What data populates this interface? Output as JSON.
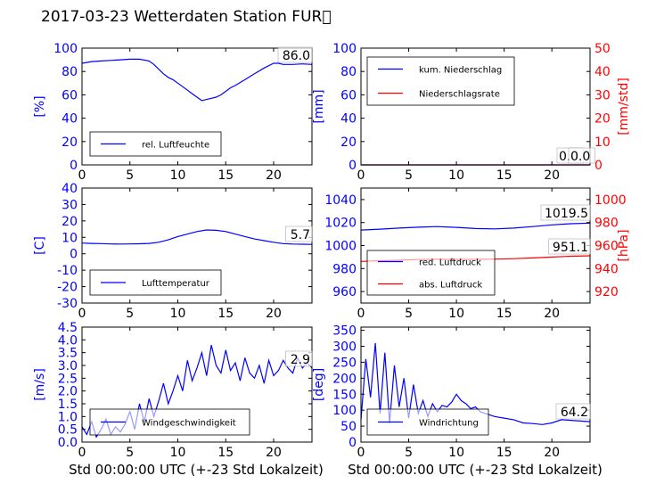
{
  "title": "2017-03-23 Wetterdaten Station FUR\u0000",
  "x_axis_label": "Std 00:00:00 UTC (+-23 Std Lokalzeit)",
  "colors": {
    "left_axis": "#0000ff",
    "right_axis": "#ff0000",
    "series_blue": "#0000ff",
    "series_red": "#ff0000"
  },
  "chart_data": [
    {
      "id": "humidity",
      "type": "line",
      "ylabel_left": "[%]",
      "ylim_left": [
        0,
        100
      ],
      "yticks_left": [
        0,
        20,
        40,
        60,
        80,
        100
      ],
      "xlim": [
        0,
        24
      ],
      "xticks": [
        0,
        5,
        10,
        15,
        20
      ],
      "legend": [
        "rel. Luftfeuchte"
      ],
      "legend_position": "lower-left",
      "annotations": [
        "86.0"
      ],
      "series": [
        {
          "name": "rel. Luftfeuchte",
          "axis": "left",
          "color": "#0000ff",
          "x": [
            0,
            1,
            2,
            3,
            4,
            5,
            6,
            7,
            7.5,
            8,
            8.5,
            9,
            9.5,
            10,
            10.5,
            11,
            11.5,
            12,
            12.5,
            13,
            13.5,
            14,
            14.5,
            15,
            15.5,
            16,
            17,
            18,
            19,
            20,
            20.5,
            21,
            22,
            23,
            24
          ],
          "y": [
            87,
            88.5,
            89,
            89.5,
            90,
            90.5,
            90.5,
            89,
            86,
            82,
            78,
            75,
            73,
            70,
            67,
            64,
            61,
            58,
            55,
            56,
            57,
            58,
            60,
            63,
            66,
            68,
            73,
            78,
            83,
            87,
            87,
            86,
            86,
            86.5,
            86
          ]
        }
      ]
    },
    {
      "id": "precipitation",
      "type": "line",
      "ylabel_left": "[mm]",
      "ylim_left": [
        0,
        100
      ],
      "yticks_left": [
        0,
        20,
        40,
        60,
        80,
        100
      ],
      "ylabel_right": "[mm/std]",
      "ylim_right": [
        0,
        50
      ],
      "yticks_right": [
        0,
        10,
        20,
        30,
        40,
        50
      ],
      "xlim": [
        0,
        24
      ],
      "xticks": [
        0,
        5,
        10,
        15,
        20
      ],
      "legend": [
        "kum. Niederschlag",
        "Niederschlagsrate"
      ],
      "legend_position": "upper-left",
      "annotations": [
        "0.0",
        "0.0"
      ],
      "series": [
        {
          "name": "kum. Niederschlag",
          "axis": "left",
          "color": "#0000ff",
          "x": [
            0,
            24
          ],
          "y": [
            0,
            0
          ]
        },
        {
          "name": "Niederschlagsrate",
          "axis": "right",
          "color": "#ff0000",
          "x": [
            0,
            24
          ],
          "y": [
            0,
            0
          ]
        }
      ]
    },
    {
      "id": "temperature",
      "type": "line",
      "ylabel_left": "[C]",
      "ylim_left": [
        -30,
        40
      ],
      "yticks_left": [
        -30,
        -20,
        -10,
        0,
        10,
        20,
        30,
        40
      ],
      "xlim": [
        0,
        24
      ],
      "xticks": [
        0,
        5,
        10,
        15,
        20
      ],
      "legend": [
        "Lufttemperatur"
      ],
      "legend_position": "lower-left",
      "annotations": [
        "5.7"
      ],
      "series": [
        {
          "name": "Lufttemperatur",
          "axis": "left",
          "color": "#0000ff",
          "x": [
            0,
            1,
            2,
            3,
            4,
            5,
            6,
            7,
            8,
            9,
            10,
            11,
            12,
            13,
            14,
            15,
            16,
            17,
            18,
            19,
            20,
            21,
            22,
            23,
            24
          ],
          "y": [
            6.5,
            6.3,
            6.2,
            6.0,
            5.9,
            6.0,
            6.1,
            6.3,
            7.0,
            8.5,
            10.5,
            12.0,
            13.5,
            14.5,
            14.3,
            13.5,
            12.0,
            10.5,
            9.0,
            8.0,
            7.0,
            6.2,
            5.9,
            5.8,
            5.7
          ]
        }
      ]
    },
    {
      "id": "pressure",
      "type": "line",
      "ylim_left": [
        950,
        1050
      ],
      "yticks_left": [
        960,
        980,
        1000,
        1020,
        1040
      ],
      "ylabel_right": "[hPa]",
      "ylim_right": [
        910,
        1010
      ],
      "yticks_right": [
        920,
        940,
        960,
        980,
        1000
      ],
      "xlim": [
        0,
        24
      ],
      "xticks": [
        0,
        5,
        10,
        15,
        20
      ],
      "legend": [
        "red. Luftdruck",
        "abs. Luftdruck"
      ],
      "legend_position": "lower-left",
      "annotations": [
        "1019.5",
        "951.1"
      ],
      "series": [
        {
          "name": "red. Luftdruck",
          "axis": "left",
          "color": "#0000ff",
          "x": [
            0,
            2,
            4,
            6,
            8,
            10,
            12,
            14,
            16,
            18,
            20,
            22,
            24
          ],
          "y": [
            1013.5,
            1014.3,
            1015.2,
            1016.0,
            1016.5,
            1015.8,
            1014.8,
            1014.5,
            1015.2,
            1016.5,
            1018.0,
            1019.0,
            1019.5
          ]
        },
        {
          "name": "abs. Luftdruck",
          "axis": "right",
          "color": "#ff0000",
          "x": [
            0,
            2,
            4,
            6,
            8,
            10,
            12,
            14,
            16,
            18,
            20,
            22,
            24
          ],
          "y": [
            946.2,
            946.8,
            947.3,
            947.8,
            948.1,
            948.0,
            948.0,
            948.2,
            948.6,
            949.2,
            950.0,
            950.7,
            951.1
          ]
        }
      ]
    },
    {
      "id": "windspeed",
      "type": "line",
      "ylabel_left": "[m/s]",
      "ylim_left": [
        0,
        4.5
      ],
      "yticks_left": [
        0.0,
        0.5,
        1.0,
        1.5,
        2.0,
        2.5,
        3.0,
        3.5,
        4.0,
        4.5
      ],
      "xlim": [
        0,
        24
      ],
      "xticks": [
        0,
        5,
        10,
        15,
        20
      ],
      "legend": [
        "Windgeschwindigkeit"
      ],
      "legend_position": "lower-left",
      "annotations": [
        "2.9"
      ],
      "series": [
        {
          "name": "Windgeschwindigkeit",
          "axis": "left",
          "color": "#0000ff",
          "x": [
            0,
            0.5,
            1,
            1.5,
            2,
            2.5,
            3,
            3.5,
            4,
            4.5,
            5,
            5.5,
            6,
            6.5,
            7,
            7.5,
            8,
            8.5,
            9,
            9.5,
            10,
            10.5,
            11,
            11.5,
            12,
            12.5,
            13,
            13.5,
            14,
            14.5,
            15,
            15.5,
            16,
            16.5,
            17,
            17.5,
            18,
            18.5,
            19,
            19.5,
            20,
            20.5,
            21,
            21.5,
            22,
            22.5,
            23,
            23.5,
            24
          ],
          "y": [
            0.6,
            0.3,
            0.8,
            0.2,
            0.5,
            0.9,
            0.3,
            0.6,
            0.4,
            0.7,
            1.2,
            0.5,
            1.5,
            0.8,
            1.7,
            1.0,
            1.6,
            2.3,
            1.5,
            2.0,
            2.6,
            2.0,
            3.2,
            2.4,
            2.9,
            3.5,
            2.6,
            3.8,
            3.0,
            2.7,
            3.6,
            2.8,
            3.1,
            2.4,
            3.3,
            2.7,
            2.5,
            3.0,
            2.3,
            3.2,
            2.6,
            2.8,
            3.2,
            2.9,
            2.7,
            3.3,
            2.9,
            3.1,
            2.9
          ]
        }
      ]
    },
    {
      "id": "winddirection",
      "type": "line",
      "ylabel_left": "[deg]",
      "ylim_left": [
        0,
        360
      ],
      "yticks_left": [
        0,
        50,
        100,
        150,
        200,
        250,
        300,
        350
      ],
      "xlim": [
        0,
        24
      ],
      "xticks": [
        0,
        5,
        10,
        15,
        20
      ],
      "legend": [
        "Windrichtung"
      ],
      "legend_position": "lower-left",
      "annotations": [
        "64.2"
      ],
      "series": [
        {
          "name": "Windrichtung",
          "axis": "left",
          "color": "#0000ff",
          "x": [
            0,
            0.5,
            1,
            1.5,
            2,
            2.5,
            3,
            3.5,
            4,
            4.5,
            5,
            5.5,
            6,
            6.5,
            7,
            7.5,
            8,
            8.5,
            9,
            9.5,
            10,
            10.5,
            11,
            11.5,
            12,
            12.5,
            13,
            14,
            15,
            16,
            17,
            18,
            19,
            20,
            21,
            22,
            23,
            24
          ],
          "y": [
            70,
            260,
            140,
            310,
            90,
            280,
            60,
            240,
            110,
            200,
            75,
            180,
            90,
            130,
            80,
            120,
            95,
            115,
            110,
            125,
            150,
            130,
            120,
            105,
            110,
            95,
            90,
            80,
            75,
            70,
            60,
            58,
            55,
            60,
            70,
            68,
            66,
            64
          ]
        }
      ]
    }
  ]
}
